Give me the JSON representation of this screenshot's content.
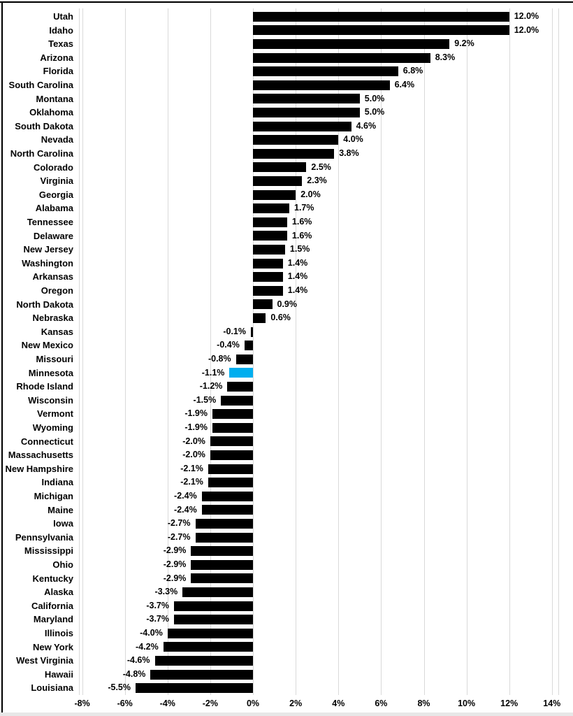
{
  "chart_data": {
    "type": "bar",
    "orientation": "horizontal",
    "title": "",
    "xlabel": "",
    "ylabel": "",
    "unit": "%",
    "grid": true,
    "xlim": [
      -8.15,
      14.3
    ],
    "x_ticks": [
      {
        "value": -8,
        "label": "-8%"
      },
      {
        "value": -6,
        "label": "-6%"
      },
      {
        "value": -4,
        "label": "-4%"
      },
      {
        "value": -2,
        "label": "-2%"
      },
      {
        "value": 0,
        "label": "0%"
      },
      {
        "value": 2,
        "label": "2%"
      },
      {
        "value": 4,
        "label": "4%"
      },
      {
        "value": 6,
        "label": "6%"
      },
      {
        "value": 8,
        "label": "8%"
      },
      {
        "value": 10,
        "label": "10%"
      },
      {
        "value": 12,
        "label": "12%"
      },
      {
        "value": 14,
        "label": "14%"
      }
    ],
    "colors": {
      "bar": "#000000",
      "highlight": "#00AEEF",
      "gridline": "#d9d9d9",
      "background": "#ffffff",
      "frame": "#000000",
      "margin": "#e7e7e7",
      "text": "#000000"
    },
    "highlight_state": "Minnesota",
    "rows": [
      {
        "state": "Utah",
        "value": 12.0,
        "label": "12.0%"
      },
      {
        "state": "Idaho",
        "value": 12.0,
        "label": "12.0%"
      },
      {
        "state": "Texas",
        "value": 9.2,
        "label": "9.2%"
      },
      {
        "state": "Arizona",
        "value": 8.3,
        "label": "8.3%"
      },
      {
        "state": "Florida",
        "value": 6.8,
        "label": "6.8%"
      },
      {
        "state": "South Carolina",
        "value": 6.4,
        "label": "6.4%"
      },
      {
        "state": "Montana",
        "value": 5.0,
        "label": "5.0%"
      },
      {
        "state": "Oklahoma",
        "value": 5.0,
        "label": "5.0%"
      },
      {
        "state": "South Dakota",
        "value": 4.6,
        "label": "4.6%"
      },
      {
        "state": "Nevada",
        "value": 4.0,
        "label": "4.0%"
      },
      {
        "state": "North Carolina",
        "value": 3.8,
        "label": "3.8%"
      },
      {
        "state": "Colorado",
        "value": 2.5,
        "label": "2.5%"
      },
      {
        "state": "Virginia",
        "value": 2.3,
        "label": "2.3%"
      },
      {
        "state": "Georgia",
        "value": 2.0,
        "label": "2.0%"
      },
      {
        "state": "Alabama",
        "value": 1.7,
        "label": "1.7%"
      },
      {
        "state": "Tennessee",
        "value": 1.6,
        "label": "1.6%"
      },
      {
        "state": "Delaware",
        "value": 1.6,
        "label": "1.6%"
      },
      {
        "state": "New Jersey",
        "value": 1.5,
        "label": "1.5%"
      },
      {
        "state": "Washington",
        "value": 1.4,
        "label": "1.4%"
      },
      {
        "state": "Arkansas",
        "value": 1.4,
        "label": "1.4%"
      },
      {
        "state": "Oregon",
        "value": 1.4,
        "label": "1.4%"
      },
      {
        "state": "North Dakota",
        "value": 0.9,
        "label": "0.9%"
      },
      {
        "state": "Nebraska",
        "value": 0.6,
        "label": "0.6%"
      },
      {
        "state": "Kansas",
        "value": -0.1,
        "label": "-0.1%"
      },
      {
        "state": "New Mexico",
        "value": -0.4,
        "label": "-0.4%"
      },
      {
        "state": "Missouri",
        "value": -0.8,
        "label": "-0.8%"
      },
      {
        "state": "Minnesota",
        "value": -1.1,
        "label": "-1.1%"
      },
      {
        "state": "Rhode Island",
        "value": -1.2,
        "label": "-1.2%"
      },
      {
        "state": "Wisconsin",
        "value": -1.5,
        "label": "-1.5%"
      },
      {
        "state": "Vermont",
        "value": -1.9,
        "label": "-1.9%"
      },
      {
        "state": "Wyoming",
        "value": -1.9,
        "label": "-1.9%"
      },
      {
        "state": "Connecticut",
        "value": -2.0,
        "label": "-2.0%"
      },
      {
        "state": "Massachusetts",
        "value": -2.0,
        "label": "-2.0%"
      },
      {
        "state": "New Hampshire",
        "value": -2.1,
        "label": "-2.1%"
      },
      {
        "state": "Indiana",
        "value": -2.1,
        "label": "-2.1%"
      },
      {
        "state": "Michigan",
        "value": -2.4,
        "label": "-2.4%"
      },
      {
        "state": "Maine",
        "value": -2.4,
        "label": "-2.4%"
      },
      {
        "state": "Iowa",
        "value": -2.7,
        "label": "-2.7%"
      },
      {
        "state": "Pennsylvania",
        "value": -2.7,
        "label": "-2.7%"
      },
      {
        "state": "Mississippi",
        "value": -2.9,
        "label": "-2.9%"
      },
      {
        "state": "Ohio",
        "value": -2.9,
        "label": "-2.9%"
      },
      {
        "state": "Kentucky",
        "value": -2.9,
        "label": "-2.9%"
      },
      {
        "state": "Alaska",
        "value": -3.3,
        "label": "-3.3%"
      },
      {
        "state": "California",
        "value": -3.7,
        "label": "-3.7%"
      },
      {
        "state": "Maryland",
        "value": -3.7,
        "label": "-3.7%"
      },
      {
        "state": "Illinois",
        "value": -4.0,
        "label": "-4.0%"
      },
      {
        "state": "New York",
        "value": -4.2,
        "label": "-4.2%"
      },
      {
        "state": "West Virginia",
        "value": -4.6,
        "label": "-4.6%"
      },
      {
        "state": "Hawaii",
        "value": -4.8,
        "label": "-4.8%"
      },
      {
        "state": "Louisiana",
        "value": -5.5,
        "label": "-5.5%"
      }
    ]
  }
}
